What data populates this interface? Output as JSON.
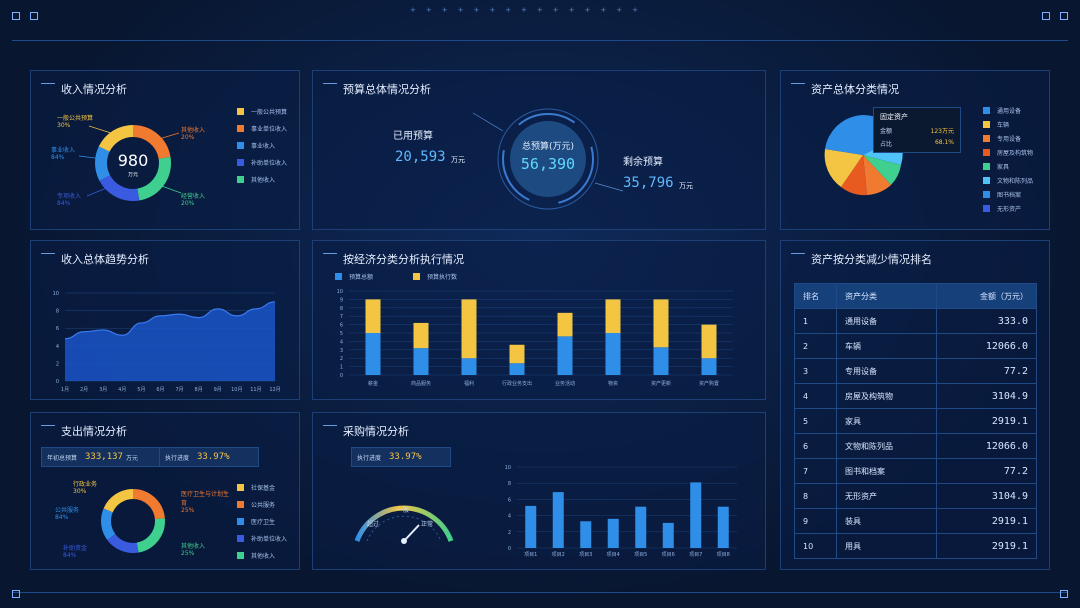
{
  "colors": {
    "accent": "#4fc3f7",
    "yellow": "#f4c542",
    "blue": "#2f8fe8",
    "orange": "#f07a30",
    "green": "#3fcf8e",
    "navy": "#3a5be0"
  },
  "income": {
    "title": "收入情况分析",
    "total": "980",
    "unit": "万元",
    "labels": [
      {
        "name": "一般公共预算",
        "pct": "30%"
      },
      {
        "name": "事业收入",
        "pct": "84%"
      },
      {
        "name": "专项收入",
        "pct": "84%"
      },
      {
        "name": "其他收入",
        "pct": "20%"
      },
      {
        "name": "经营收入",
        "pct": "20%"
      }
    ],
    "legend": [
      "一般公共预算",
      "事业单位收入",
      "事业收入",
      "补助单位收入",
      "其他收入"
    ]
  },
  "budget": {
    "title": "预算总体情况分析",
    "used_label": "已用预算",
    "used_value": "20,593",
    "used_unit": "万元",
    "total_label": "总预算(万元)",
    "total_value": "56,390",
    "remain_label": "剩余预算",
    "remain_value": "35,796",
    "remain_unit": "万元"
  },
  "assets_cat": {
    "title": "资产总体分类情况",
    "tooltip_title": "固定资产",
    "tooltip_row1_label": "金额",
    "tooltip_row1_value": "123万元",
    "tooltip_row2_label": "占比",
    "tooltip_row2_value": "68.1%",
    "legend": [
      "通用设备",
      "车辆",
      "专用设备",
      "房屋及构筑物",
      "家具",
      "文物和陈列品",
      "图书档案",
      "无形资产"
    ]
  },
  "income_trend": {
    "title": "收入总体趋势分析",
    "months": [
      "1月",
      "2月",
      "3月",
      "4月",
      "5月",
      "6月",
      "7月",
      "8月",
      "9月",
      "10月",
      "11月",
      "12月"
    ],
    "y_ticks": [
      "0",
      "2",
      "4",
      "6",
      "8",
      "10"
    ]
  },
  "econ": {
    "title": "按经济分类分析执行情况",
    "legend": [
      "预算总额",
      "预算执行数"
    ],
    "y_ticks": [
      "0",
      "1",
      "2",
      "3",
      "4",
      "5",
      "6",
      "7",
      "8",
      "9",
      "10"
    ],
    "categories": [
      "薪金",
      "商品服务",
      "福利",
      "行政业务支出",
      "业务活动",
      "物资",
      "资产更新",
      "资产购置"
    ]
  },
  "rank": {
    "title": "资产按分类减少情况排名",
    "headers": [
      "排名",
      "资产分类",
      "金额（万元）"
    ],
    "rows": [
      {
        "rank": "1",
        "name": "通用设备",
        "amount": "333.0"
      },
      {
        "rank": "2",
        "name": "车辆",
        "amount": "12066.0"
      },
      {
        "rank": "3",
        "name": "专用设备",
        "amount": "77.2"
      },
      {
        "rank": "4",
        "name": "房屋及构筑物",
        "amount": "3104.9"
      },
      {
        "rank": "5",
        "name": "家具",
        "amount": "2919.1"
      },
      {
        "rank": "6",
        "name": "文物和陈列品",
        "amount": "12066.0"
      },
      {
        "rank": "7",
        "name": "图书和档案",
        "amount": "77.2"
      },
      {
        "rank": "8",
        "name": "无形资产",
        "amount": "3104.9"
      },
      {
        "rank": "9",
        "name": "装具",
        "amount": "2919.1"
      },
      {
        "rank": "10",
        "name": "用具",
        "amount": "2919.1"
      }
    ]
  },
  "expense": {
    "title": "支出情况分析",
    "budget_label": "年初总预算",
    "budget_value": "333,137",
    "budget_unit": "万元",
    "rate_label": "执行进度",
    "rate_value": "33.97%",
    "labels": [
      {
        "name": "行政业务",
        "pct": "30%"
      },
      {
        "name": "公共服务",
        "pct": "84%"
      },
      {
        "name": "补助资金",
        "pct": "84%"
      },
      {
        "name": "医疗卫生与计划生育",
        "pct": "25%"
      },
      {
        "name": "其他收入",
        "pct": "25%"
      }
    ],
    "legend": [
      "社保基金",
      "公共服务",
      "医疗卫生",
      "补助单位收入",
      "其他收入"
    ]
  },
  "purchase": {
    "title": "采购情况分析",
    "rate_label": "执行进度",
    "rate_value": "33.97%",
    "gauge_left": "超过",
    "gauge_mid": "一般",
    "gauge_right": "正常",
    "y_ticks": [
      "0",
      "2",
      "4",
      "6",
      "8",
      "10"
    ],
    "categories": [
      "项目1",
      "项目2",
      "项目3",
      "项目4",
      "项目5",
      "项目6",
      "项目7",
      "项目8"
    ]
  },
  "chart_data": [
    {
      "type": "area",
      "title": "收入总体趋势分析",
      "categories": [
        "1月",
        "2月",
        "3月",
        "4月",
        "5月",
        "6月",
        "7月",
        "8月",
        "9月",
        "10月",
        "11月",
        "12月"
      ],
      "values": [
        4.8,
        5.6,
        5.8,
        5.2,
        6.6,
        7.4,
        7.6,
        7.2,
        8.2,
        7.4,
        8.2,
        9.0
      ],
      "ylim": [
        0,
        10
      ]
    },
    {
      "type": "bar",
      "title": "按经济分类分析执行情况",
      "categories": [
        "薪金",
        "商品服务",
        "福利",
        "行政业务支出",
        "业务活动",
        "物资",
        "资产更新",
        "资产购置"
      ],
      "series": [
        {
          "name": "预算总额",
          "values": [
            5,
            3.2,
            2,
            1.4,
            4.6,
            5,
            3.3,
            2
          ]
        },
        {
          "name": "预算执行数",
          "values": [
            4,
            3,
            7,
            2.2,
            2.8,
            4,
            5.7,
            4
          ]
        }
      ],
      "ylim": [
        0,
        10
      ],
      "stacked": true
    },
    {
      "type": "bar",
      "title": "采购情况分析",
      "categories": [
        "项目1",
        "项目2",
        "项目3",
        "项目4",
        "项目5",
        "项目6",
        "项目7",
        "项目8"
      ],
      "values": [
        5.2,
        6.9,
        3.3,
        3.6,
        5.1,
        3.1,
        8.1,
        5.1
      ],
      "ylim": [
        0,
        10
      ]
    }
  ]
}
